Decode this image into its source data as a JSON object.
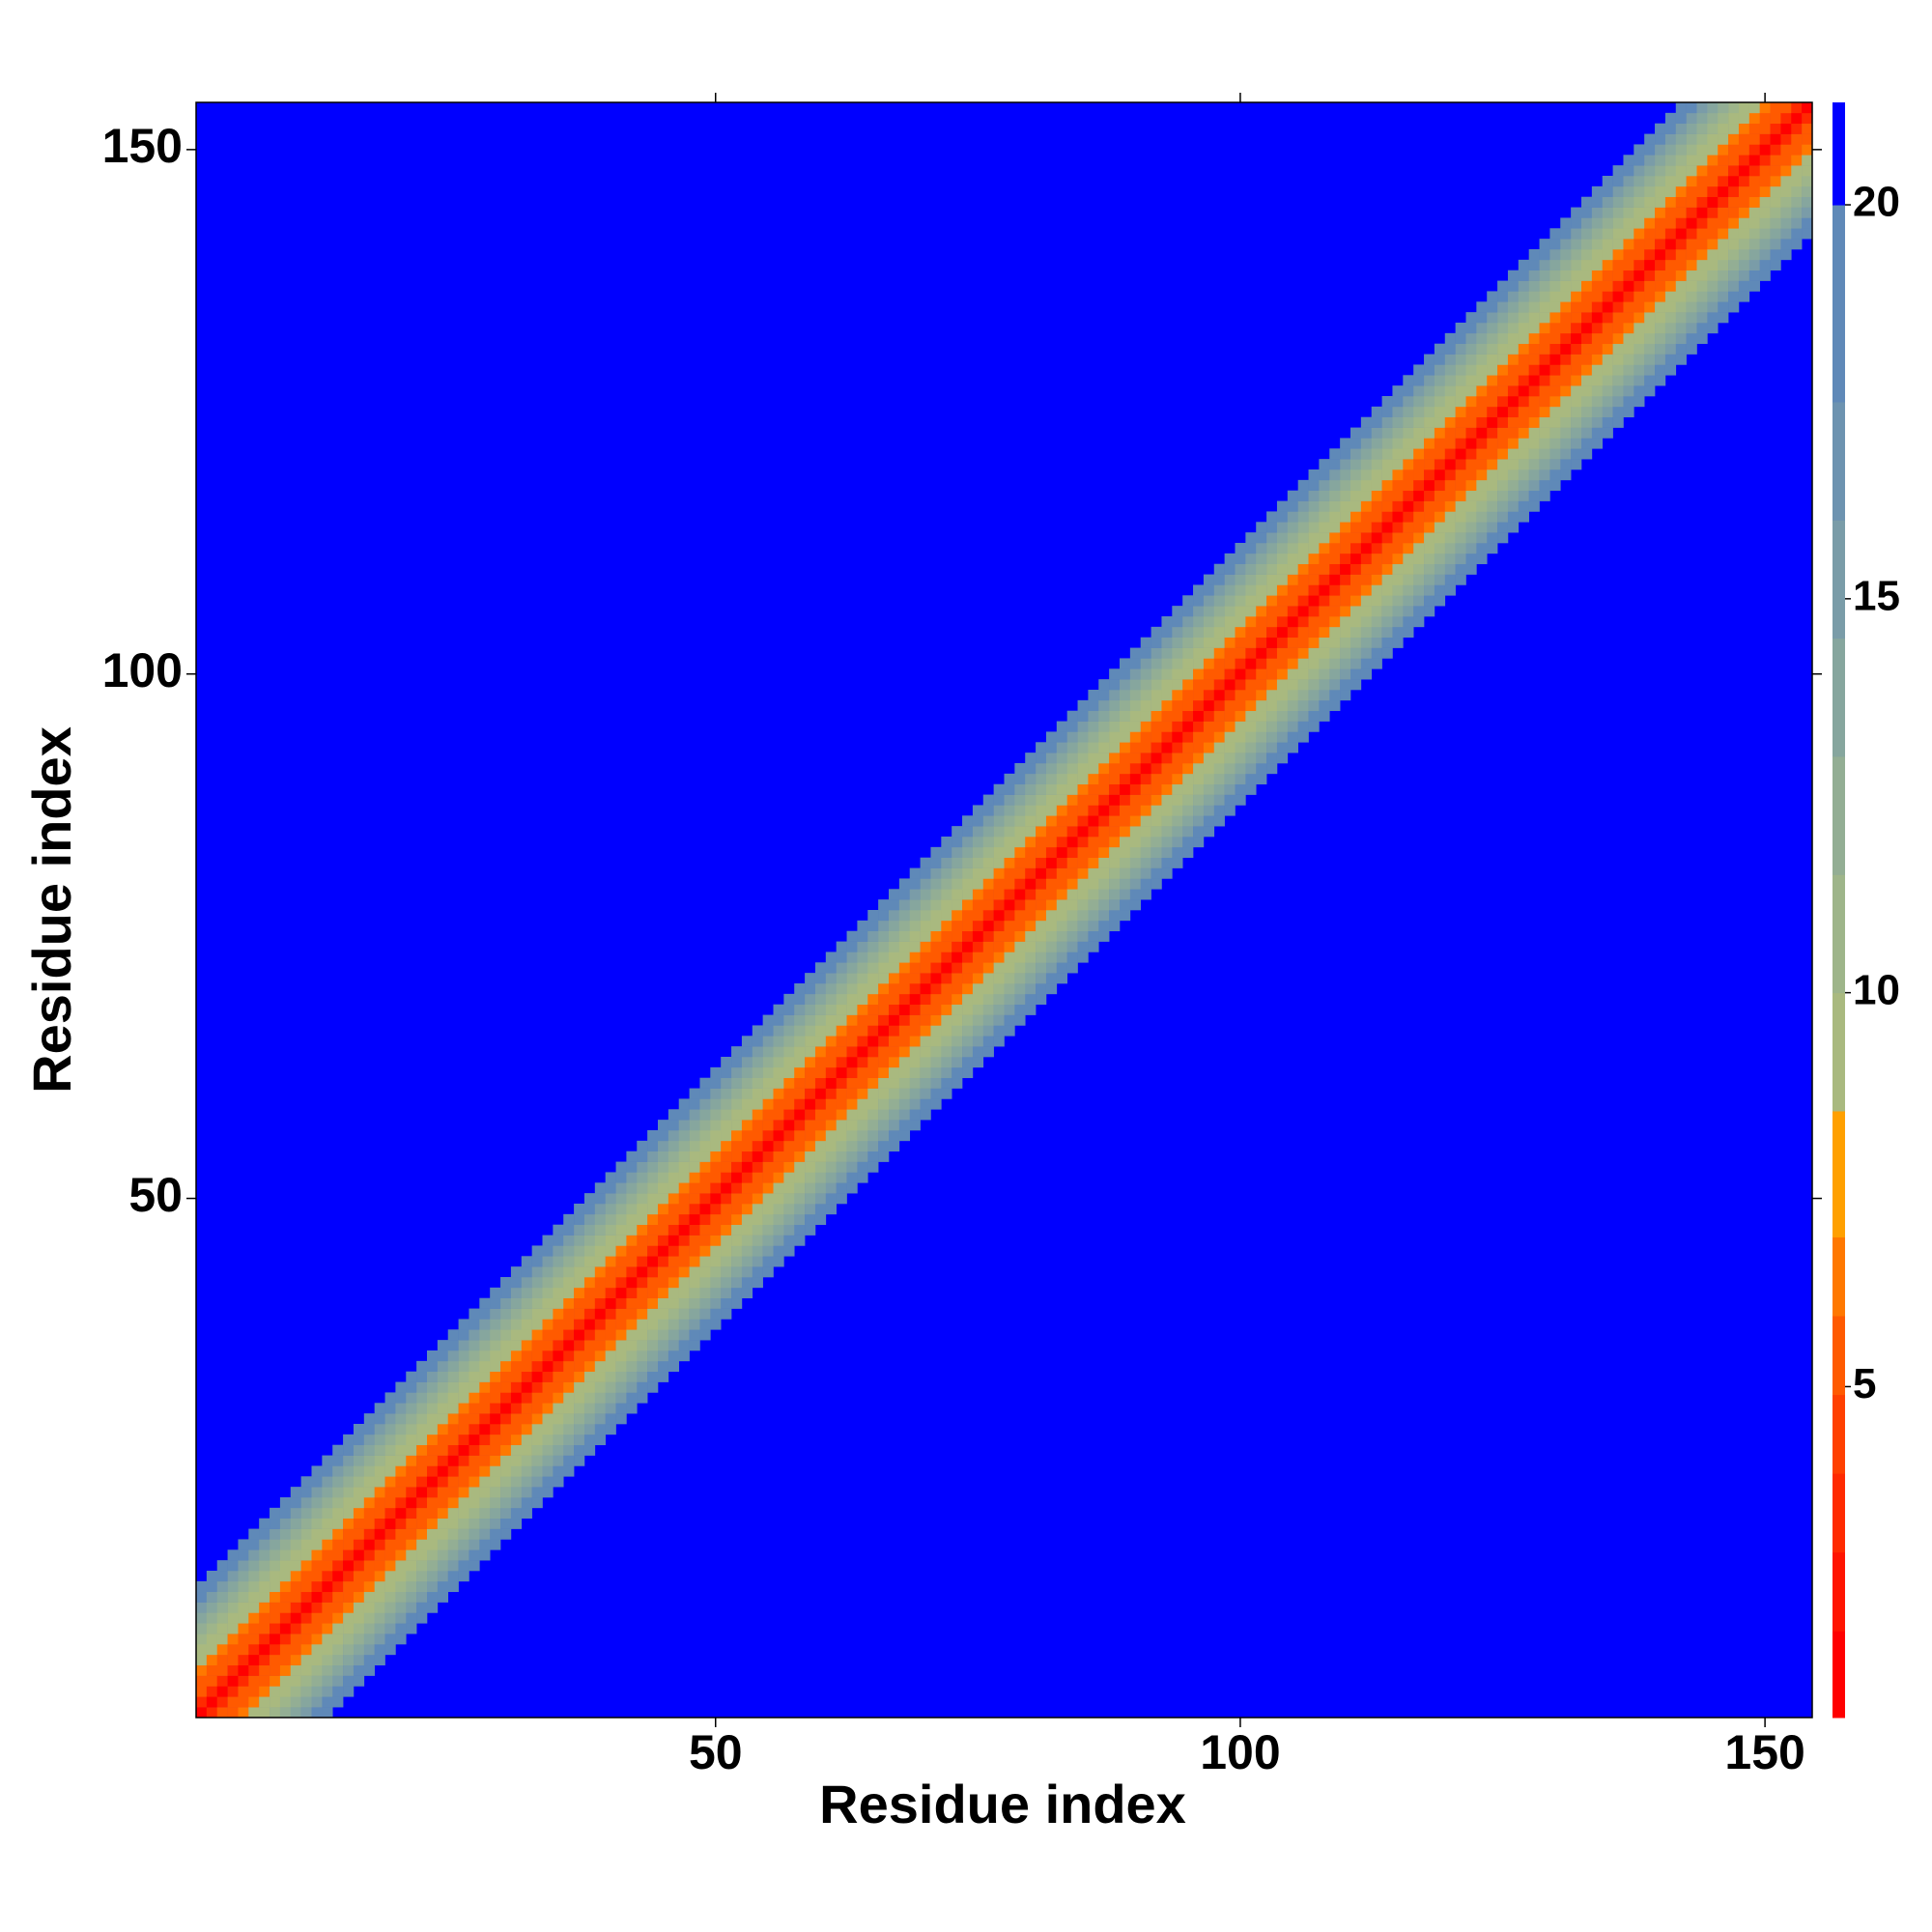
{
  "chart_data": {
    "type": "heatmap",
    "xlabel": "Residue index",
    "ylabel": "Residue index",
    "xlim": [
      0.5,
      154.5
    ],
    "ylim": [
      0.5,
      154.5
    ],
    "xticks": [
      50,
      100,
      150
    ],
    "yticks": [
      50,
      100,
      150
    ],
    "diagonal_offsets": [
      0,
      1,
      2,
      3,
      4,
      5,
      6,
      7,
      8,
      9,
      10,
      11,
      12,
      13
    ],
    "diagonal_values": [
      0,
      3.8,
      5.5,
      5.0,
      6.2,
      8.6,
      9.9,
      11,
      12.4,
      14,
      15.8,
      17.6,
      19.5,
      21
    ],
    "colorbar": {
      "lim": [
        0.8,
        21.3
      ],
      "ticks": [
        5,
        10,
        15,
        20
      ],
      "levels": [
        0.8,
        1.9,
        2.9,
        3.9,
        4.9,
        5.9,
        6.9,
        8.5,
        10,
        11.5,
        13,
        14.5,
        16,
        17.5,
        20,
        21.3
      ],
      "colors": [
        "#ff0000",
        "#ff1400",
        "#ff2a00",
        "#ff4000",
        "#ff5a00",
        "#ff7800",
        "#ffa000",
        "#a9b97f",
        "#9eb58a",
        "#93ae94",
        "#86a69e",
        "#7a9ca8",
        "#6d93b0",
        "#5f89b8",
        "#0000ff"
      ]
    }
  }
}
